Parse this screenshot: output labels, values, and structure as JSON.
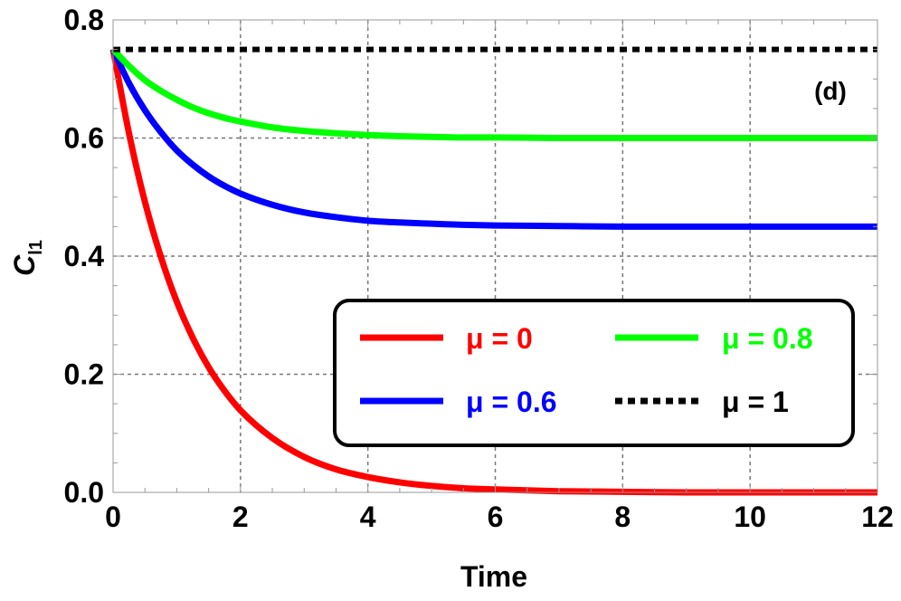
{
  "chart_data": {
    "type": "line",
    "title": "",
    "panel_label": "(d)",
    "xlabel": "Time",
    "ylabel_main": "C",
    "ylabel_sub": "l1",
    "xlim": [
      0,
      12
    ],
    "ylim": [
      0,
      0.8
    ],
    "xticks": [
      0,
      2,
      4,
      6,
      8,
      10,
      12
    ],
    "xtick_labels": [
      "0",
      "2",
      "4",
      "6",
      "8",
      "10",
      "12"
    ],
    "yticks": [
      0.0,
      0.2,
      0.4,
      0.6,
      0.8
    ],
    "ytick_labels": [
      "0.0",
      "0.2",
      "0.4",
      "0.6",
      "0.8"
    ],
    "grid": true,
    "legend_position": "lower-right",
    "series": [
      {
        "name": "μ = 0",
        "color": "#ff0000",
        "dash": "solid",
        "x": [
          0,
          0.25,
          0.5,
          0.75,
          1.0,
          1.25,
          1.5,
          1.75,
          2.0,
          2.5,
          3.0,
          3.5,
          4.0,
          4.5,
          5.0,
          5.5,
          6.0,
          7.0,
          8.0,
          9.0,
          10.0,
          11.0,
          12.0
        ],
        "values": [
          0.75,
          0.608,
          0.492,
          0.399,
          0.323,
          0.262,
          0.212,
          0.172,
          0.139,
          0.092,
          0.06,
          0.039,
          0.026,
          0.017,
          0.011,
          0.007,
          0.005,
          0.002,
          0.001,
          0.0,
          0.0,
          0.0,
          0.0
        ]
      },
      {
        "name": "μ = 0.6",
        "color": "#0000ff",
        "dash": "solid",
        "x": [
          0,
          0.25,
          0.5,
          0.75,
          1.0,
          1.25,
          1.5,
          1.75,
          2.0,
          2.5,
          3.0,
          3.5,
          4.0,
          4.5,
          5.0,
          5.5,
          6.0,
          7.0,
          8.0,
          9.0,
          10.0,
          11.0,
          12.0
        ],
        "values": [
          0.75,
          0.693,
          0.647,
          0.61,
          0.579,
          0.555,
          0.535,
          0.519,
          0.506,
          0.487,
          0.474,
          0.466,
          0.46,
          0.457,
          0.455,
          0.453,
          0.452,
          0.451,
          0.45,
          0.45,
          0.45,
          0.45,
          0.45
        ]
      },
      {
        "name": "μ = 0.8",
        "color": "#00ff00",
        "dash": "solid",
        "x": [
          0,
          0.25,
          0.5,
          0.75,
          1.0,
          1.25,
          1.5,
          1.75,
          2.0,
          2.5,
          3.0,
          3.5,
          4.0,
          4.5,
          5.0,
          5.5,
          6.0,
          7.0,
          8.0,
          9.0,
          10.0,
          11.0,
          12.0
        ],
        "values": [
          0.75,
          0.722,
          0.698,
          0.68,
          0.665,
          0.652,
          0.642,
          0.634,
          0.628,
          0.618,
          0.612,
          0.608,
          0.605,
          0.603,
          0.602,
          0.601,
          0.601,
          0.6,
          0.6,
          0.6,
          0.6,
          0.6,
          0.6
        ]
      },
      {
        "name": "μ = 1",
        "color": "#000000",
        "dash": "dotted",
        "x": [
          0,
          12
        ],
        "values": [
          0.75,
          0.75
        ]
      }
    ]
  }
}
